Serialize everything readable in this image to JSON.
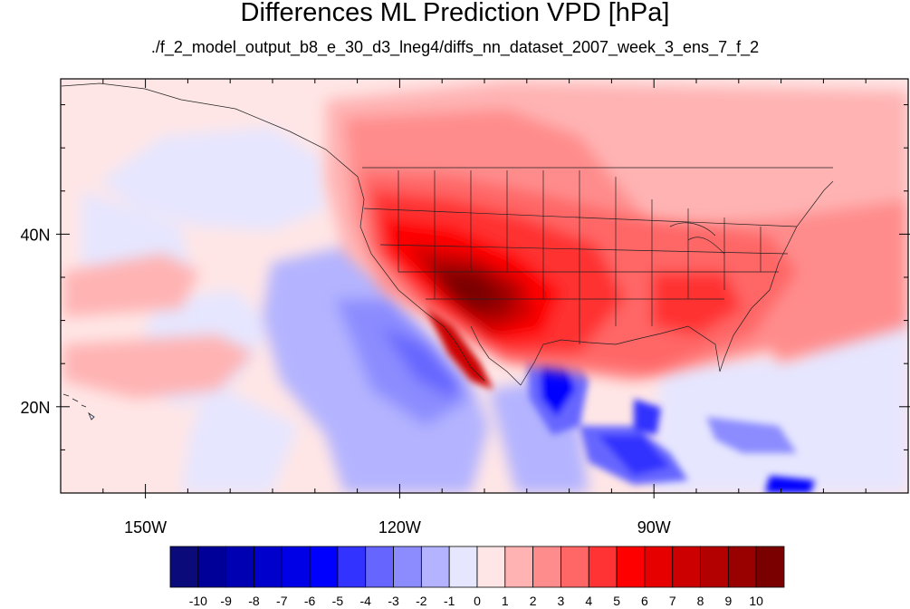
{
  "title": "Differences ML Prediction VPD [hPa]",
  "subtitle": "./f_2_model_output_b8_e_30_d3_lneg4/diffs_nn_dataset_2007_week_3_ens_7_f_2",
  "map": {
    "projection": "cylindrical-equidistant",
    "lon_range": [
      -160,
      -60
    ],
    "lat_range": [
      10,
      58
    ],
    "lat_ticks": [
      {
        "value": 40,
        "label": "40N"
      },
      {
        "value": 20,
        "label": "20N"
      }
    ],
    "lon_ticks": [
      {
        "value": -150,
        "label": "150W"
      },
      {
        "value": -120,
        "label": "120W"
      },
      {
        "value": -90,
        "label": "90W"
      }
    ]
  },
  "colorbar": {
    "labels": [
      "-10",
      "-9",
      "-8",
      "-7",
      "-6",
      "-5",
      "-4",
      "-3",
      "-2",
      "-1",
      "0",
      "1",
      "2",
      "3",
      "4",
      "5",
      "6",
      "7",
      "8",
      "9",
      "10"
    ],
    "colors": [
      "#0a0a7a",
      "#000099",
      "#0000b3",
      "#0000cc",
      "#0000e6",
      "#0000ff",
      "#3333ff",
      "#6666ff",
      "#8c8cff",
      "#b3b3ff",
      "#e6e6ff",
      "#ffe6e6",
      "#ffb3b3",
      "#ff8c8c",
      "#ff6666",
      "#ff3333",
      "#ff0000",
      "#e60000",
      "#cc0000",
      "#b30000",
      "#990000",
      "#7a0000"
    ]
  }
}
